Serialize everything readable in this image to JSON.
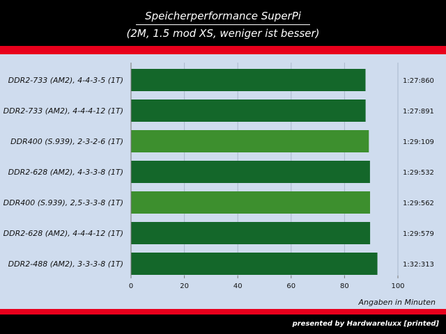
{
  "header": {
    "title": "Speicherperformance SuperPi",
    "subtitle": "(2M, 1.5 mod XS, weniger ist besser)"
  },
  "footer": {
    "credit": "presented by Hardwareluxx [printed]"
  },
  "colors": {
    "background": "#000000",
    "accent_red": "#e8001c",
    "plot_bg": "#cfdcee",
    "bar_dark": "#14672a",
    "bar_light": "#3d8f2e"
  },
  "chart_data": {
    "type": "bar",
    "orientation": "horizontal",
    "title": "Speicherperformance SuperPi",
    "subtitle": "(2M, 1.5 mod XS, weniger ist besser)",
    "xlabel": "Angaben in Minuten",
    "ylabel": "",
    "xlim": [
      0,
      100
    ],
    "x_ticks": [
      0,
      20,
      40,
      60,
      80,
      100
    ],
    "grid": true,
    "legend": "none",
    "categories": [
      "DDR2-733 (AM2), 4-4-3-5 (1T)",
      "DDR2-733 (AM2), 4-4-4-12 (1T)",
      "DDR400 (S.939), 2-3-2-6 (1T)",
      "DDR2-628 (AM2), 4-3-3-8 (1T)",
      "DDR400 (S.939), 2,5-3-3-8 (1T)",
      "DDR2-628 (AM2), 4-4-4-12 (1T)",
      "DDR2-488 (AM2), 3-3-3-8 (1T)"
    ],
    "values": [
      87.86,
      87.891,
      89.109,
      89.532,
      89.562,
      89.579,
      92.313
    ],
    "value_labels": [
      "1:27:860",
      "1:27:891",
      "1:29:109",
      "1:29:532",
      "1:29:562",
      "1:29:579",
      "1:32:313"
    ],
    "bar_colors": [
      "#14672a",
      "#14672a",
      "#3d8f2e",
      "#14672a",
      "#3d8f2e",
      "#14672a",
      "#14672a"
    ]
  }
}
